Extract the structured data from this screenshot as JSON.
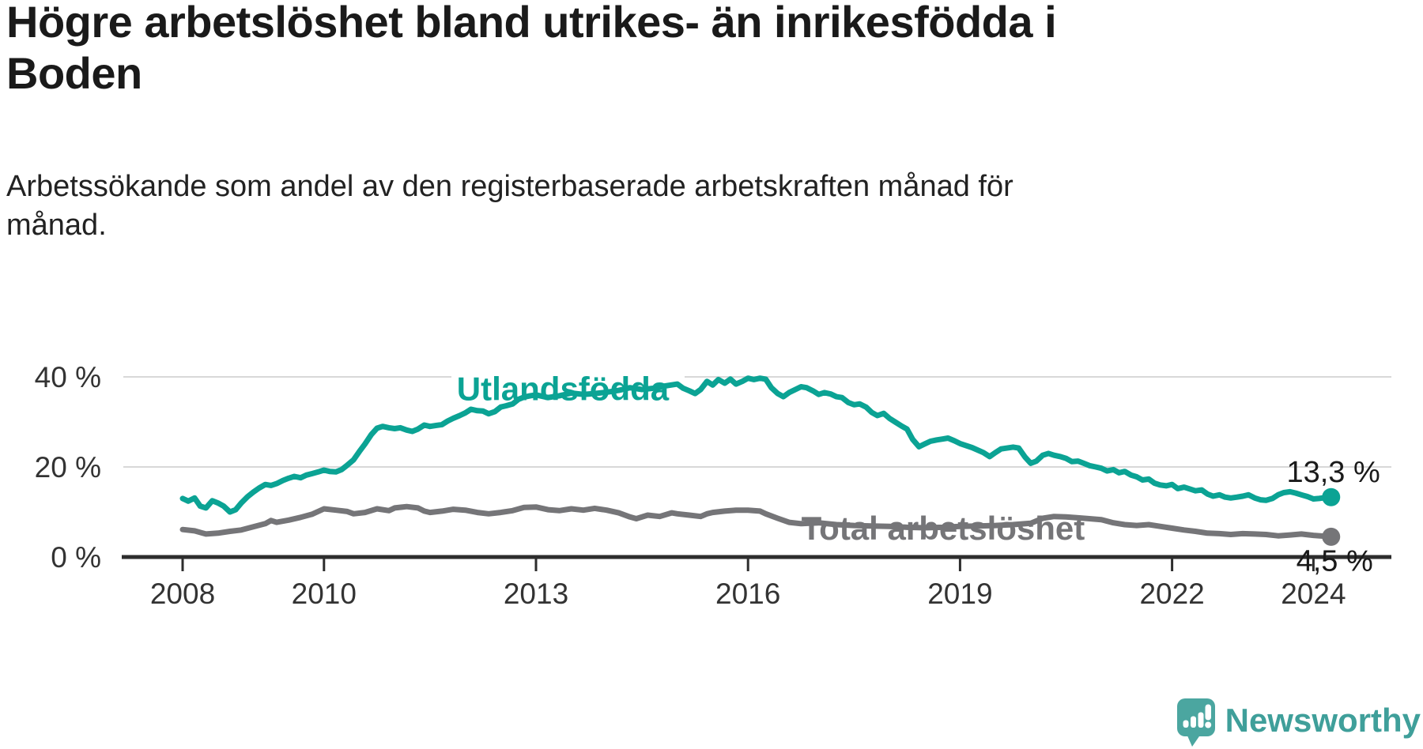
{
  "header": {
    "title_lines": [
      "Högre arbetslöshet bland utrikes- än inrikesfödda i",
      "Boden"
    ],
    "subtitle_lines": [
      "Arbetssökande som andel av den registerbaserade arbetskraften månad för",
      "månad."
    ]
  },
  "colors": {
    "teal": "#0ba394",
    "gray": "#757578",
    "text_dark": "#1a1a1a",
    "tick_label": "#333333",
    "axis": "#2d2d2d",
    "grid": "#d8d8d8",
    "logo_icon": "#4ba6a0",
    "logo_text": "#3f9f9a"
  },
  "branding": {
    "logo_text": "Newsworthy",
    "logo_icon": "newsworthy-speech-bubble-barchart-icon"
  },
  "chart_data": {
    "type": "line",
    "title": "Högre arbetslöshet bland utrikes- än inrikesfödda i Boden",
    "subtitle": "Arbetssökande som andel av den registerbaserade arbetskraften månad för månad.",
    "xlabel": "",
    "ylabel": "",
    "x_ticks": [
      2008,
      2010,
      2013,
      2016,
      2019,
      2022,
      2024
    ],
    "y_ticks": [
      {
        "value": 0,
        "label": "0 %"
      },
      {
        "value": 20,
        "label": "20 %"
      },
      {
        "value": 40,
        "label": "40 %"
      }
    ],
    "xlim": [
      2007.7,
      2025.1
    ],
    "ylim": [
      0,
      44
    ],
    "grid": "horizontal",
    "legend_position": "inline-labels",
    "series": [
      {
        "name": "Utlandsfödda",
        "color_key": "teal",
        "end_label": "13,3 %",
        "end_value": 13.3,
        "label_anchor": [
          2013.38,
          34.8
        ],
        "points": [
          [
            2008.0,
            13.0
          ],
          [
            2008.08,
            12.4
          ],
          [
            2008.17,
            13.1
          ],
          [
            2008.25,
            11.3
          ],
          [
            2008.33,
            10.9
          ],
          [
            2008.42,
            12.5
          ],
          [
            2008.5,
            12.0
          ],
          [
            2008.58,
            11.3
          ],
          [
            2008.67,
            10.0
          ],
          [
            2008.75,
            10.5
          ],
          [
            2008.83,
            12.0
          ],
          [
            2008.92,
            13.4
          ],
          [
            2009.0,
            14.4
          ],
          [
            2009.08,
            15.3
          ],
          [
            2009.17,
            16.1
          ],
          [
            2009.25,
            15.9
          ],
          [
            2009.33,
            16.3
          ],
          [
            2009.42,
            17.0
          ],
          [
            2009.5,
            17.5
          ],
          [
            2009.58,
            17.9
          ],
          [
            2009.67,
            17.6
          ],
          [
            2009.75,
            18.2
          ],
          [
            2009.83,
            18.5
          ],
          [
            2009.92,
            18.9
          ],
          [
            2010.0,
            19.3
          ],
          [
            2010.08,
            19.0
          ],
          [
            2010.17,
            18.9
          ],
          [
            2010.25,
            19.4
          ],
          [
            2010.33,
            20.4
          ],
          [
            2010.42,
            21.6
          ],
          [
            2010.5,
            23.4
          ],
          [
            2010.58,
            25.1
          ],
          [
            2010.67,
            27.2
          ],
          [
            2010.75,
            28.6
          ],
          [
            2010.83,
            29.0
          ],
          [
            2010.92,
            28.7
          ],
          [
            2011.0,
            28.5
          ],
          [
            2011.08,
            28.7
          ],
          [
            2011.17,
            28.2
          ],
          [
            2011.25,
            27.9
          ],
          [
            2011.33,
            28.4
          ],
          [
            2011.42,
            29.3
          ],
          [
            2011.5,
            29.0
          ],
          [
            2011.58,
            29.2
          ],
          [
            2011.67,
            29.4
          ],
          [
            2011.75,
            30.2
          ],
          [
            2011.83,
            30.8
          ],
          [
            2011.92,
            31.4
          ],
          [
            2012.0,
            32.0
          ],
          [
            2012.08,
            32.8
          ],
          [
            2012.17,
            32.5
          ],
          [
            2012.25,
            32.4
          ],
          [
            2012.33,
            31.8
          ],
          [
            2012.42,
            32.3
          ],
          [
            2012.5,
            33.3
          ],
          [
            2012.58,
            33.6
          ],
          [
            2012.67,
            34.0
          ],
          [
            2012.75,
            35.0
          ],
          [
            2012.83,
            35.5
          ],
          [
            2012.92,
            35.8
          ],
          [
            2013.0,
            36.0
          ],
          [
            2013.17,
            35.4
          ],
          [
            2013.33,
            35.8
          ],
          [
            2013.5,
            36.4
          ],
          [
            2013.67,
            36.1
          ],
          [
            2013.83,
            36.3
          ],
          [
            2014.0,
            36.6
          ],
          [
            2014.17,
            37.0
          ],
          [
            2014.33,
            37.6
          ],
          [
            2014.5,
            37.2
          ],
          [
            2014.67,
            37.5
          ],
          [
            2014.83,
            38.0
          ],
          [
            2015.0,
            38.4
          ],
          [
            2015.08,
            37.5
          ],
          [
            2015.17,
            36.9
          ],
          [
            2015.25,
            36.3
          ],
          [
            2015.33,
            37.2
          ],
          [
            2015.42,
            39.0
          ],
          [
            2015.5,
            38.2
          ],
          [
            2015.58,
            39.4
          ],
          [
            2015.67,
            38.6
          ],
          [
            2015.75,
            39.5
          ],
          [
            2015.83,
            38.4
          ],
          [
            2015.92,
            39.0
          ],
          [
            2016.0,
            39.7
          ],
          [
            2016.08,
            39.4
          ],
          [
            2016.17,
            39.7
          ],
          [
            2016.25,
            39.5
          ],
          [
            2016.33,
            37.6
          ],
          [
            2016.42,
            36.3
          ],
          [
            2016.5,
            35.6
          ],
          [
            2016.58,
            36.5
          ],
          [
            2016.67,
            37.2
          ],
          [
            2016.75,
            37.8
          ],
          [
            2016.83,
            37.6
          ],
          [
            2016.92,
            36.9
          ],
          [
            2017.0,
            36.1
          ],
          [
            2017.08,
            36.5
          ],
          [
            2017.17,
            36.2
          ],
          [
            2017.25,
            35.6
          ],
          [
            2017.33,
            35.4
          ],
          [
            2017.42,
            34.3
          ],
          [
            2017.5,
            33.8
          ],
          [
            2017.58,
            34.0
          ],
          [
            2017.67,
            33.3
          ],
          [
            2017.75,
            32.1
          ],
          [
            2017.83,
            31.4
          ],
          [
            2017.92,
            31.9
          ],
          [
            2018.0,
            30.8
          ],
          [
            2018.08,
            30.0
          ],
          [
            2018.17,
            29.1
          ],
          [
            2018.25,
            28.4
          ],
          [
            2018.33,
            26.1
          ],
          [
            2018.42,
            24.5
          ],
          [
            2018.5,
            25.1
          ],
          [
            2018.58,
            25.7
          ],
          [
            2018.67,
            26.0
          ],
          [
            2018.75,
            26.2
          ],
          [
            2018.83,
            26.4
          ],
          [
            2018.92,
            25.8
          ],
          [
            2019.0,
            25.2
          ],
          [
            2019.17,
            24.3
          ],
          [
            2019.33,
            23.2
          ],
          [
            2019.42,
            22.3
          ],
          [
            2019.5,
            23.2
          ],
          [
            2019.58,
            24.0
          ],
          [
            2019.75,
            24.4
          ],
          [
            2019.83,
            24.2
          ],
          [
            2019.92,
            22.2
          ],
          [
            2020.0,
            20.8
          ],
          [
            2020.08,
            21.3
          ],
          [
            2020.17,
            22.6
          ],
          [
            2020.25,
            23.0
          ],
          [
            2020.33,
            22.6
          ],
          [
            2020.42,
            22.3
          ],
          [
            2020.5,
            21.9
          ],
          [
            2020.58,
            21.2
          ],
          [
            2020.67,
            21.3
          ],
          [
            2020.75,
            20.8
          ],
          [
            2020.83,
            20.3
          ],
          [
            2020.92,
            20.0
          ],
          [
            2021.0,
            19.7
          ],
          [
            2021.08,
            19.1
          ],
          [
            2021.17,
            19.4
          ],
          [
            2021.25,
            18.7
          ],
          [
            2021.33,
            19.0
          ],
          [
            2021.42,
            18.2
          ],
          [
            2021.5,
            17.8
          ],
          [
            2021.58,
            17.1
          ],
          [
            2021.67,
            17.3
          ],
          [
            2021.75,
            16.4
          ],
          [
            2021.83,
            16.0
          ],
          [
            2021.92,
            15.8
          ],
          [
            2022.0,
            16.1
          ],
          [
            2022.08,
            15.2
          ],
          [
            2022.17,
            15.5
          ],
          [
            2022.33,
            14.7
          ],
          [
            2022.42,
            14.9
          ],
          [
            2022.5,
            14.0
          ],
          [
            2022.58,
            13.5
          ],
          [
            2022.67,
            13.8
          ],
          [
            2022.75,
            13.3
          ],
          [
            2022.83,
            13.1
          ],
          [
            2022.92,
            13.3
          ],
          [
            2023.0,
            13.5
          ],
          [
            2023.08,
            13.8
          ],
          [
            2023.17,
            13.1
          ],
          [
            2023.25,
            12.7
          ],
          [
            2023.33,
            12.6
          ],
          [
            2023.42,
            13.0
          ],
          [
            2023.5,
            13.8
          ],
          [
            2023.58,
            14.3
          ],
          [
            2023.67,
            14.5
          ],
          [
            2023.75,
            14.2
          ],
          [
            2023.83,
            13.8
          ],
          [
            2023.92,
            13.4
          ],
          [
            2024.0,
            12.9
          ],
          [
            2024.08,
            13.0
          ],
          [
            2024.17,
            13.2
          ],
          [
            2024.25,
            13.3
          ]
        ]
      },
      {
        "name": "Total arbetslöshet",
        "color_key": "gray",
        "end_label": "4,5 %",
        "end_value": 4.5,
        "label_anchor": [
          2018.76,
          3.9
        ],
        "points": [
          [
            2008.0,
            6.1
          ],
          [
            2008.17,
            5.8
          ],
          [
            2008.33,
            5.1
          ],
          [
            2008.5,
            5.3
          ],
          [
            2008.67,
            5.7
          ],
          [
            2008.83,
            6.0
          ],
          [
            2009.0,
            6.7
          ],
          [
            2009.17,
            7.4
          ],
          [
            2009.25,
            8.1
          ],
          [
            2009.33,
            7.7
          ],
          [
            2009.5,
            8.2
          ],
          [
            2009.67,
            8.8
          ],
          [
            2009.83,
            9.5
          ],
          [
            2010.0,
            10.7
          ],
          [
            2010.17,
            10.4
          ],
          [
            2010.33,
            10.1
          ],
          [
            2010.42,
            9.6
          ],
          [
            2010.58,
            9.9
          ],
          [
            2010.75,
            10.7
          ],
          [
            2010.92,
            10.3
          ],
          [
            2011.0,
            10.9
          ],
          [
            2011.17,
            11.2
          ],
          [
            2011.33,
            10.9
          ],
          [
            2011.42,
            10.2
          ],
          [
            2011.5,
            9.9
          ],
          [
            2011.67,
            10.2
          ],
          [
            2011.83,
            10.6
          ],
          [
            2012.0,
            10.4
          ],
          [
            2012.17,
            9.9
          ],
          [
            2012.33,
            9.6
          ],
          [
            2012.5,
            9.9
          ],
          [
            2012.67,
            10.3
          ],
          [
            2012.83,
            11.0
          ],
          [
            2013.0,
            11.1
          ],
          [
            2013.17,
            10.5
          ],
          [
            2013.33,
            10.3
          ],
          [
            2013.5,
            10.7
          ],
          [
            2013.67,
            10.4
          ],
          [
            2013.83,
            10.8
          ],
          [
            2014.0,
            10.4
          ],
          [
            2014.17,
            9.8
          ],
          [
            2014.33,
            8.9
          ],
          [
            2014.42,
            8.5
          ],
          [
            2014.58,
            9.3
          ],
          [
            2014.75,
            9.0
          ],
          [
            2014.92,
            9.8
          ],
          [
            2015.0,
            9.6
          ],
          [
            2015.17,
            9.3
          ],
          [
            2015.33,
            9.0
          ],
          [
            2015.42,
            9.6
          ],
          [
            2015.5,
            9.9
          ],
          [
            2015.67,
            10.2
          ],
          [
            2015.83,
            10.4
          ],
          [
            2016.0,
            10.4
          ],
          [
            2016.17,
            10.2
          ],
          [
            2016.25,
            9.6
          ],
          [
            2016.42,
            8.6
          ],
          [
            2016.58,
            7.7
          ],
          [
            2016.75,
            7.4
          ],
          [
            2017.0,
            7.6
          ],
          [
            2017.25,
            7.2
          ],
          [
            2017.5,
            7.0
          ],
          [
            2017.75,
            6.9
          ],
          [
            2018.0,
            6.8
          ],
          [
            2018.25,
            6.6
          ],
          [
            2018.5,
            6.5
          ],
          [
            2018.75,
            6.6
          ],
          [
            2019.0,
            6.8
          ],
          [
            2019.25,
            6.9
          ],
          [
            2019.5,
            7.0
          ],
          [
            2019.75,
            7.2
          ],
          [
            2020.0,
            7.5
          ],
          [
            2020.17,
            8.6
          ],
          [
            2020.33,
            9.0
          ],
          [
            2020.5,
            8.9
          ],
          [
            2020.67,
            8.7
          ],
          [
            2020.83,
            8.5
          ],
          [
            2021.0,
            8.3
          ],
          [
            2021.17,
            7.6
          ],
          [
            2021.33,
            7.2
          ],
          [
            2021.5,
            7.0
          ],
          [
            2021.67,
            7.2
          ],
          [
            2021.83,
            6.8
          ],
          [
            2022.0,
            6.4
          ],
          [
            2022.17,
            6.0
          ],
          [
            2022.33,
            5.7
          ],
          [
            2022.5,
            5.3
          ],
          [
            2022.67,
            5.2
          ],
          [
            2022.83,
            5.0
          ],
          [
            2023.0,
            5.2
          ],
          [
            2023.17,
            5.1
          ],
          [
            2023.33,
            5.0
          ],
          [
            2023.5,
            4.7
          ],
          [
            2023.67,
            4.9
          ],
          [
            2023.83,
            5.1
          ],
          [
            2024.0,
            4.8
          ],
          [
            2024.17,
            4.6
          ],
          [
            2024.25,
            4.5
          ]
        ]
      }
    ]
  }
}
